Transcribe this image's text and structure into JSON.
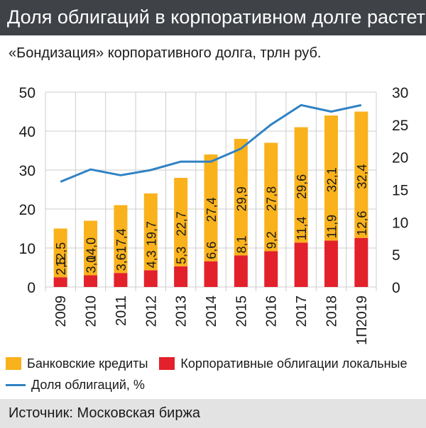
{
  "header": {
    "title": "Доля облигаций в корпоративном долге растет",
    "subtitle": "«Бондизация» корпоративного долга, трлн руб."
  },
  "legend": {
    "bank_loans": "Банковские кредиты",
    "corporate_bonds": "Корпоративные облигации локальные",
    "bond_share": "Доля облигаций, %"
  },
  "source": "Источник: Московская биржа",
  "colors": {
    "bank_loans": "#f9b21b",
    "corporate_bonds": "#e3212b",
    "bond_share": "#2f82c4",
    "grid": "#cccccc",
    "title_bar": "#3f4247",
    "source_bar": "#e3e3e3"
  },
  "chart_data": {
    "type": "bar",
    "stacked": true,
    "categories": [
      "2009",
      "2010",
      "2011",
      "2012",
      "2013",
      "2014",
      "2015",
      "2016",
      "2017",
      "2018",
      "1П2019"
    ],
    "series": [
      {
        "name": "Корпоративные облигации локальные",
        "axis": "left",
        "values": [
          2.5,
          3.0,
          3.6,
          4.3,
          5.3,
          6.6,
          8.1,
          9.2,
          11.4,
          11.9,
          12.6
        ],
        "labels": [
          "2,5",
          "3,0",
          "3,6",
          "4,3",
          "5,3",
          "6,6",
          "8,1",
          "9,2",
          "11,4",
          "11,9",
          "12,6"
        ]
      },
      {
        "name": "Банковские кредиты",
        "axis": "left",
        "values": [
          12.5,
          14.0,
          17.4,
          19.7,
          22.7,
          27.4,
          29.9,
          27.8,
          29.6,
          32.1,
          32.4
        ],
        "labels": [
          "12,5",
          "14,0",
          "17,4",
          "19,7",
          "22,7",
          "27,4",
          "29,9",
          "27,8",
          "29,6",
          "32,1",
          "32,4"
        ]
      },
      {
        "name": "Доля облигаций, %",
        "type": "line",
        "axis": "right",
        "values": [
          16.2,
          18.1,
          17.2,
          18.0,
          19.3,
          19.3,
          21.3,
          25.0,
          28.0,
          27.0,
          28.0
        ]
      }
    ],
    "y_left": {
      "min": 0,
      "max": 50,
      "ticks": [
        0,
        10,
        20,
        30,
        40,
        50
      ]
    },
    "y_right": {
      "min": 0,
      "max": 30,
      "ticks": [
        0,
        5,
        10,
        15,
        20,
        25,
        30
      ]
    },
    "grid": true,
    "legend_position": "bottom"
  }
}
